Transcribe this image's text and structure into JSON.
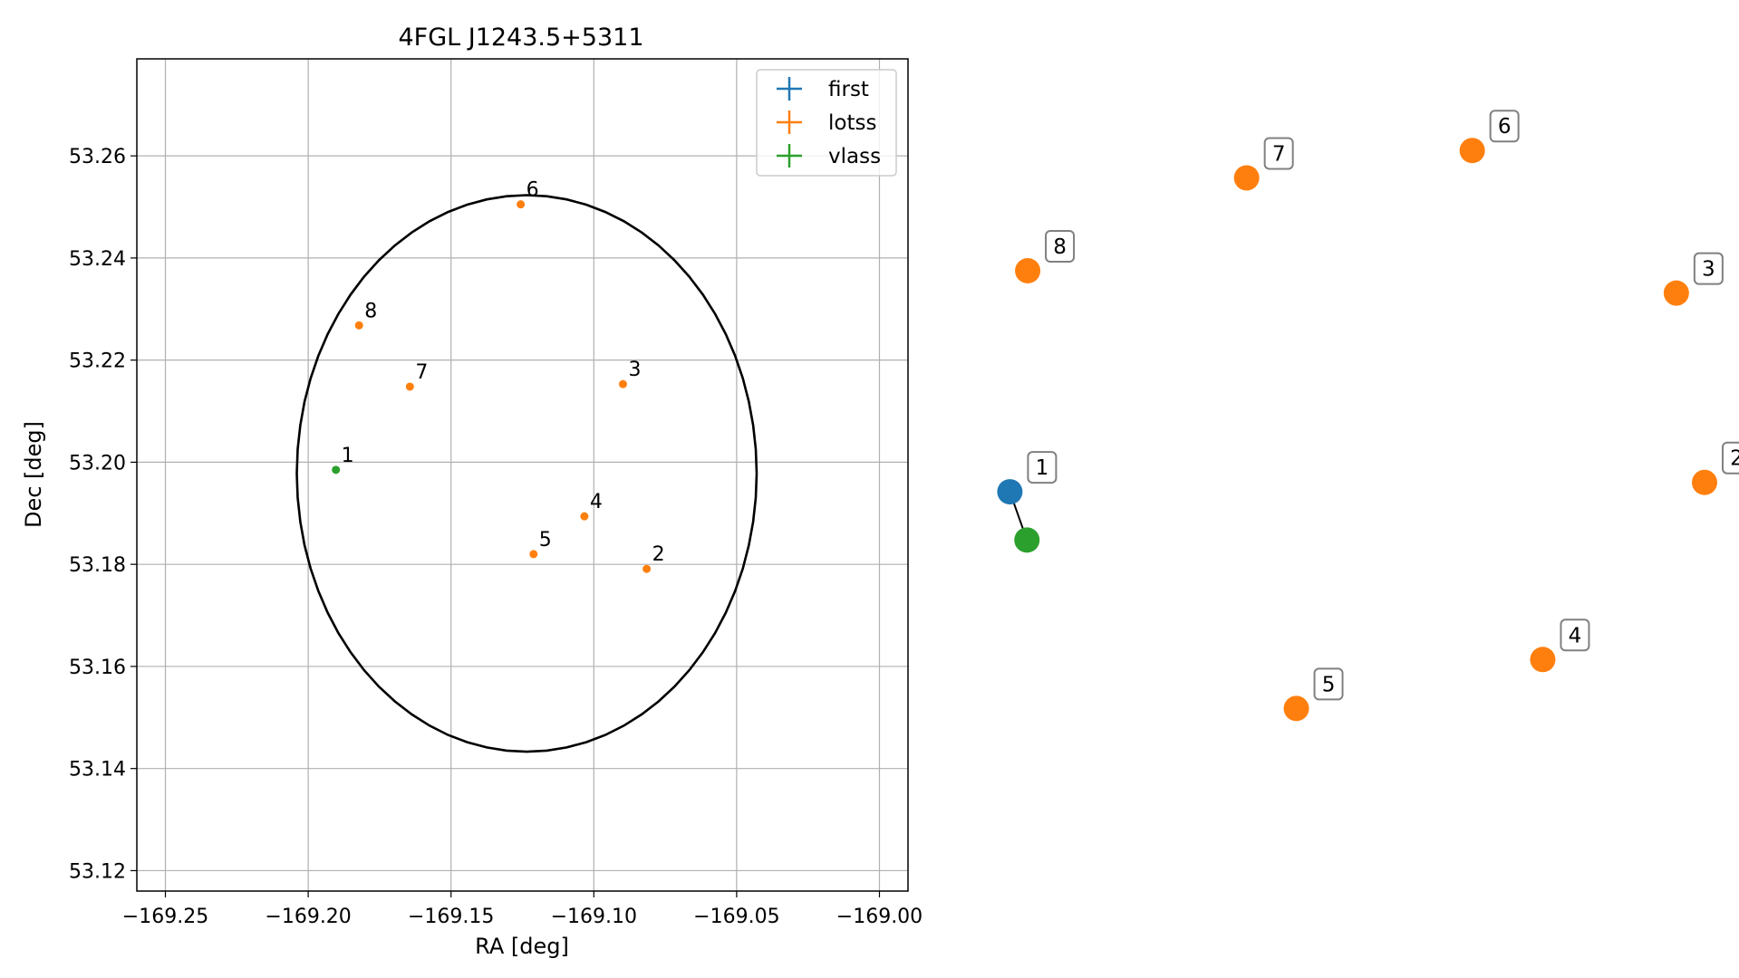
{
  "chart_data": [
    {
      "type": "scatter",
      "title": "4FGL J1243.5+5311",
      "xlabel": "RA [deg]",
      "ylabel": "Dec [deg]",
      "xlim": [
        -169.26,
        -168.99
      ],
      "ylim": [
        53.116,
        53.279
      ],
      "grid": true,
      "legend_position": "top-right",
      "x_ticks": [
        -169.25,
        -169.2,
        -169.15,
        -169.1,
        -169.05,
        -169.0
      ],
      "x_tick_labels": [
        "−169.25",
        "−169.20",
        "−169.15",
        "−169.10",
        "−169.05",
        "−169.00"
      ],
      "y_ticks": [
        53.12,
        53.14,
        53.16,
        53.18,
        53.2,
        53.22,
        53.24,
        53.26
      ],
      "y_tick_labels": [
        "53.12",
        "53.14",
        "53.16",
        "53.18",
        "53.20",
        "53.22",
        "53.24",
        "53.26"
      ],
      "ellipse": {
        "center": [
          -169.1235,
          53.1978
        ],
        "semi_axis_ra": 0.0805,
        "semi_axis_dec": 0.0545,
        "color": "#000000"
      },
      "series": [
        {
          "name": "first",
          "color": "#1f77b4",
          "points": []
        },
        {
          "name": "lotss",
          "color": "#ff7f0e",
          "points": [
            {
              "label": "2",
              "x": -169.0815,
              "y": 53.1791
            },
            {
              "label": "3",
              "x": -169.0898,
              "y": 53.2153
            },
            {
              "label": "4",
              "x": -169.1033,
              "y": 53.1894
            },
            {
              "label": "5",
              "x": -169.1211,
              "y": 53.182
            },
            {
              "label": "6",
              "x": -169.1256,
              "y": 53.2505
            },
            {
              "label": "7",
              "x": -169.1644,
              "y": 53.2148
            },
            {
              "label": "8",
              "x": -169.1822,
              "y": 53.2268
            }
          ]
        },
        {
          "name": "vlass",
          "color": "#2ca02c",
          "points": [
            {
              "label": "1",
              "x": -169.1903,
              "y": 53.1985
            }
          ]
        }
      ]
    },
    {
      "type": "scatter",
      "title": "",
      "xlabel": "",
      "ylabel": "",
      "axes_visible": false,
      "x_range": [
        0,
        1
      ],
      "y_range": [
        0,
        1
      ],
      "points": [
        {
          "label": "1",
          "catalog": "first",
          "x": 0.042,
          "y": 0.493,
          "color": "#1f77b4"
        },
        {
          "label": "1",
          "catalog": "vlass",
          "x": 0.065,
          "y": 0.426,
          "color": "#2ca02c"
        },
        {
          "label": "2",
          "catalog": "lotss",
          "x": 0.978,
          "y": 0.506,
          "color": "#ff7f0e"
        },
        {
          "label": "3",
          "catalog": "lotss",
          "x": 0.94,
          "y": 0.769,
          "color": "#ff7f0e"
        },
        {
          "label": "4",
          "catalog": "lotss",
          "x": 0.76,
          "y": 0.26,
          "color": "#ff7f0e"
        },
        {
          "label": "5",
          "catalog": "lotss",
          "x": 0.428,
          "y": 0.192,
          "color": "#ff7f0e"
        },
        {
          "label": "6",
          "catalog": "lotss",
          "x": 0.665,
          "y": 0.967,
          "color": "#ff7f0e"
        },
        {
          "label": "7",
          "catalog": "lotss",
          "x": 0.361,
          "y": 0.929,
          "color": "#ff7f0e"
        },
        {
          "label": "8",
          "catalog": "lotss",
          "x": 0.066,
          "y": 0.8,
          "color": "#ff7f0e"
        }
      ],
      "links": [
        {
          "from": 0,
          "to": 1,
          "color": "#000000"
        }
      ]
    }
  ]
}
